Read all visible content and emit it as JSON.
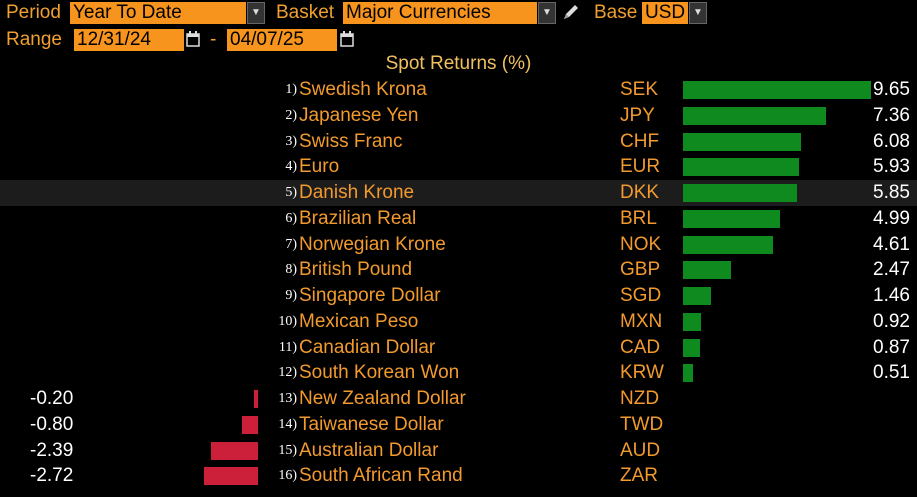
{
  "toolbar": {
    "period_label": "Period",
    "period_value": "Year To Date",
    "basket_label": "Basket",
    "basket_value": "Major Currencies",
    "base_label": "Base",
    "base_value": "USD",
    "range_label": "Range",
    "range_start": "12/31/24",
    "range_sep": "-",
    "range_end": "04/07/25"
  },
  "icons": {
    "dropdown": "chevron-down-icon",
    "calendar": "calendar-icon",
    "edit": "pencil-icon"
  },
  "colors": {
    "positive": "#0f8a1f",
    "negative": "#cc1f3a",
    "field_bg": "#f7941d",
    "label": "#f29a2e"
  },
  "chart_data": {
    "type": "bar",
    "title": "Spot Returns (%)",
    "orientation": "horizontal",
    "selected_row": 5,
    "rows": [
      {
        "rank": "1)",
        "name": "Swedish Krona",
        "code": "SEK",
        "value": 9.65,
        "label": "9.65"
      },
      {
        "rank": "2)",
        "name": "Japanese Yen",
        "code": "JPY",
        "value": 7.36,
        "label": "7.36"
      },
      {
        "rank": "3)",
        "name": "Swiss Franc",
        "code": "CHF",
        "value": 6.08,
        "label": "6.08"
      },
      {
        "rank": "4)",
        "name": "Euro",
        "code": "EUR",
        "value": 5.93,
        "label": "5.93"
      },
      {
        "rank": "5)",
        "name": "Danish Krone",
        "code": "DKK",
        "value": 5.85,
        "label": "5.85"
      },
      {
        "rank": "6)",
        "name": "Brazilian Real",
        "code": "BRL",
        "value": 4.99,
        "label": "4.99"
      },
      {
        "rank": "7)",
        "name": "Norwegian Krone",
        "code": "NOK",
        "value": 4.61,
        "label": "4.61"
      },
      {
        "rank": "8)",
        "name": "British Pound",
        "code": "GBP",
        "value": 2.47,
        "label": "2.47"
      },
      {
        "rank": "9)",
        "name": "Singapore Dollar",
        "code": "SGD",
        "value": 1.46,
        "label": "1.46"
      },
      {
        "rank": "10)",
        "name": "Mexican Peso",
        "code": "MXN",
        "value": 0.92,
        "label": "0.92"
      },
      {
        "rank": "11)",
        "name": "Canadian Dollar",
        "code": "CAD",
        "value": 0.87,
        "label": "0.87"
      },
      {
        "rank": "12)",
        "name": "South Korean Won",
        "code": "KRW",
        "value": 0.51,
        "label": "0.51"
      },
      {
        "rank": "13)",
        "name": "New Zealand Dollar",
        "code": "NZD",
        "value": -0.2,
        "label": "-0.20"
      },
      {
        "rank": "14)",
        "name": "Taiwanese Dollar",
        "code": "TWD",
        "value": -0.8,
        "label": "-0.80"
      },
      {
        "rank": "15)",
        "name": "Australian Dollar",
        "code": "AUD",
        "value": -2.39,
        "label": "-2.39"
      },
      {
        "rank": "16)",
        "name": "South African Rand",
        "code": "ZAR",
        "value": -2.72,
        "label": "-2.72"
      }
    ]
  }
}
